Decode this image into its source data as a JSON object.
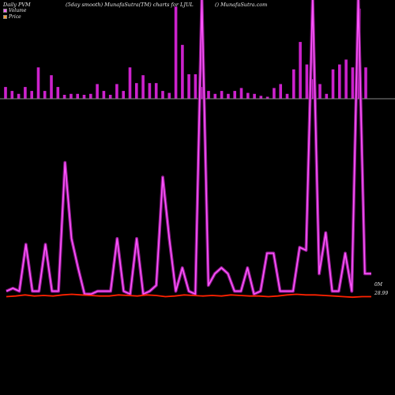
{
  "header": {
    "left": "Daily PVM",
    "middle": "(5day smooth) MunafaSutra(TM) charts for LJUL",
    "right": "() MunafaSutra.com"
  },
  "legend": [
    {
      "label": "Volume",
      "color": "#ff66ff"
    },
    {
      "label": "Price",
      "color": "#ff9933"
    }
  ],
  "axis": {
    "volume_label": "0M",
    "price_label": "28.99"
  },
  "colors": {
    "background": "#000000",
    "volume_bar": "#cc22cc",
    "volume_line": "#ff55ff",
    "price_line": "#ff2200",
    "zero_line": "#888888"
  },
  "chart_data": {
    "type": "bar",
    "title": "Daily PVM (5day smooth) MunafaSutra(TM) charts for LJUL",
    "series": [
      {
        "name": "Volume",
        "kind": "bar",
        "values": [
          0.12,
          0.08,
          0.05,
          0.12,
          0.08,
          0.32,
          0.08,
          0.24,
          0.12,
          0.04,
          0.05,
          0.05,
          0.04,
          0.05,
          0.15,
          0.08,
          0.04,
          0.15,
          0.08,
          0.32,
          0.16,
          0.24,
          0.16,
          0.16,
          0.08,
          0.06,
          0.94,
          0.55,
          0.25,
          0.25,
          0.12,
          0.08,
          0.05,
          0.08,
          0.05,
          0.08,
          0.11,
          0.06,
          0.05,
          0.03,
          0.02,
          0.11,
          0.15,
          0.05,
          0.3,
          0.58,
          0.35,
          0.2,
          0.15,
          0.05,
          0.3,
          0.35,
          0.4,
          0.32,
          0.92,
          0.32
        ]
      },
      {
        "name": "Volume (5day smooth)",
        "kind": "line",
        "values": [
          0.02,
          0.03,
          0.02,
          0.18,
          0.02,
          0.02,
          0.18,
          0.02,
          0.02,
          0.46,
          0.2,
          0.1,
          0.01,
          0.01,
          0.02,
          0.02,
          0.02,
          0.2,
          0.02,
          0.01,
          0.2,
          0.01,
          0.02,
          0.04,
          0.41,
          0.2,
          0.02,
          0.1,
          0.02,
          0.01,
          1.4,
          0.04,
          0.08,
          0.1,
          0.08,
          0.02,
          0.02,
          0.1,
          0.01,
          0.02,
          0.15,
          0.15,
          0.02,
          0.02,
          0.02,
          0.17,
          0.16,
          1.5,
          0.08,
          0.22,
          0.02,
          0.02,
          0.15,
          0.02,
          1.5,
          0.08,
          0.08
        ]
      },
      {
        "name": "Price",
        "kind": "line",
        "values": [
          28.99,
          29.0,
          29.02,
          29.0,
          29.01,
          29.0,
          29.02,
          29.03,
          29.02,
          29.01,
          29.0,
          29.0,
          29.02,
          29.01,
          29.0,
          29.02,
          29.01,
          28.99,
          29.0,
          29.02,
          29.01,
          29.0,
          29.01,
          29.0,
          29.02,
          29.01,
          29.0,
          29.0,
          28.99,
          29.0,
          29.02,
          29.03,
          29.02,
          29.02,
          29.01,
          29.0,
          28.99,
          28.98,
          28.99,
          28.99
        ]
      }
    ],
    "y_label_volume": "0M",
    "y_label_price": "28.99",
    "legend_position": "top-left",
    "grid": false
  }
}
